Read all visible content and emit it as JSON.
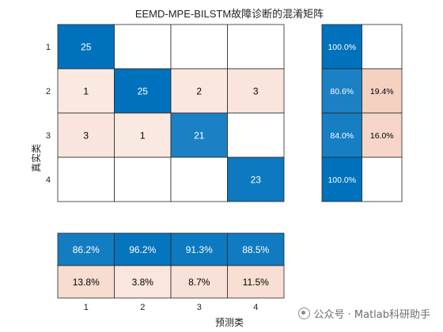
{
  "chart_data": {
    "type": "heatmap",
    "title": "EEMD-MPE-BILSTM故障诊断的混淆矩阵",
    "xlabel": "预测类",
    "ylabel": "真实类",
    "classes": [
      "1",
      "2",
      "3",
      "4"
    ],
    "matrix": [
      [
        25,
        null,
        null,
        null
      ],
      [
        1,
        25,
        2,
        3
      ],
      [
        3,
        1,
        21,
        null
      ],
      [
        null,
        null,
        null,
        23
      ]
    ],
    "row_summary": [
      [
        "100.0%",
        ""
      ],
      [
        "80.6%",
        "19.4%"
      ],
      [
        "84.0%",
        "16.0%"
      ],
      [
        "100.0%",
        ""
      ]
    ],
    "row_summary_values": [
      [
        100.0,
        0
      ],
      [
        80.6,
        19.4
      ],
      [
        84.0,
        16.0
      ],
      [
        100.0,
        0
      ]
    ],
    "column_summary": [
      [
        "86.2%",
        "96.2%",
        "91.3%",
        "88.5%"
      ],
      [
        "13.8%",
        "3.8%",
        "8.7%",
        "11.5%"
      ]
    ],
    "column_summary_values": [
      [
        86.2,
        96.2,
        91.3,
        88.5
      ],
      [
        13.8,
        3.8,
        8.7,
        11.5
      ]
    ],
    "colors": {
      "correct": "#0072bd",
      "incorrect": "#d95319",
      "text_dark": "#000000",
      "text_light": "#ffffff"
    }
  },
  "watermark": "公众号 · Matlab科研助手"
}
